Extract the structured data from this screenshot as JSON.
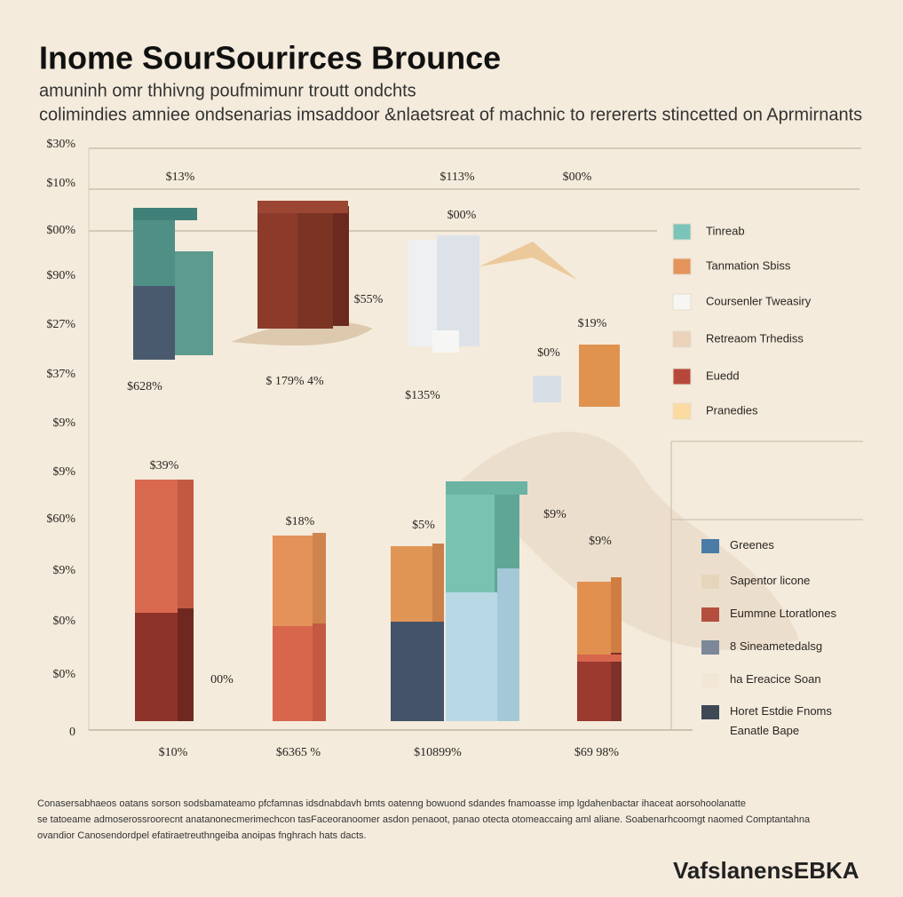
{
  "header": {
    "title": "Inome SourSourirces Brounce",
    "subtitle": [
      "amuninh omr thhivng poufmimunr troutt ondchts",
      "colimindies amniee ondsenarias imsaddoor &nlaetsreat of machnic to rerererts stincetted on Aprmirnants"
    ]
  },
  "axis_labels": [
    "$30%",
    "$10%",
    "$00%",
    "$90%",
    "$27%",
    "$37%",
    "$9%",
    "$9%",
    "$60%",
    "$9%",
    "$0%",
    "$0%",
    "0"
  ],
  "bar_labels": [
    "$13%",
    "$113%",
    "$00%",
    "$00%",
    "$55%",
    "$19%",
    "$0%",
    "$628%",
    "$ 179% 4%",
    "$135%",
    "$39%",
    "$18%",
    "$5%",
    "$9%",
    "$9%",
    "00%"
  ],
  "x_labels": [
    "$10%",
    "$6365 %",
    "$10899%",
    "$69 98%"
  ],
  "legend_top": [
    {
      "label": "Tinreab",
      "color": "#7cc3b9"
    },
    {
      "label": "Tanmation Sbiss",
      "color": "#e4945a"
    },
    {
      "label": "Coursenler Tweasiry",
      "color": "#f8f6f2"
    },
    {
      "label": "Retreaom Trhediss",
      "color": "#ebd2b9"
    },
    {
      "label": "Euedd",
      "color": "#b8473b"
    },
    {
      "label": "Pranedies",
      "color": "#fbdba2"
    }
  ],
  "legend_bottom": [
    {
      "label": "Greenes",
      "color": "#4a7ca7"
    },
    {
      "label": "Sapentor licone",
      "color": "#e5d6bb"
    },
    {
      "label": "Eummne Ltoratlones",
      "color": "#b44f3f"
    },
    {
      "label": "8 Sineametedalsg",
      "color": "#7c8899"
    },
    {
      "label": "ha Ereacice Soan",
      "color": "#f2e7d6"
    },
    {
      "label": "Horet Estdie Fnoms\nEanatle Bape",
      "color": "#3e4955"
    }
  ],
  "footnote": [
    "Conasersabhaeos oatans sorson sodsbamateamo pfcfamnas idsdnabdavh bmts oatenng bowuond sdandes fnamoasse imp lgdahenbactar ihaceat aorsohoolanatte",
    "se tatoeame admoserossroorecnt anatanonecmerimechcon tasFaceoranoomer asdon penaoot, panao otecta otomeaccaing aml aliane. Soabenarhcoomgt naomed Comptantahna",
    "ovandior Canosendordpel efatiraetreuthngeiba anoipas fnghrach hats dacts."
  ],
  "watermark": "VafslanensEBKA"
}
